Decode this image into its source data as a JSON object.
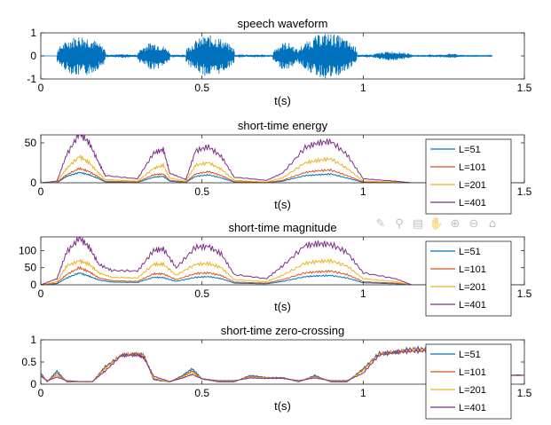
{
  "colors": [
    "#0072BD",
    "#D95319",
    "#EDB120",
    "#7E2F8E"
  ],
  "toolbar": [
    {
      "name": "brush-icon",
      "glyph": "✎"
    },
    {
      "name": "datatip-icon",
      "glyph": "⚲"
    },
    {
      "name": "legend-icon",
      "glyph": "▤"
    },
    {
      "name": "pan-icon",
      "glyph": "✋"
    },
    {
      "name": "zoom-in-icon",
      "glyph": "⊕"
    },
    {
      "name": "zoom-out-icon",
      "glyph": "⊖"
    },
    {
      "name": "home-icon",
      "glyph": "⌂"
    }
  ],
  "chart_data": [
    {
      "type": "line",
      "title": "speech waveform",
      "xlabel": "t(s)",
      "ylabel": "",
      "xlim": [
        0,
        1.5
      ],
      "ylim": [
        -1,
        1
      ],
      "xticks": [
        0,
        0.5,
        1,
        1.5
      ],
      "yticks": [
        -1,
        0,
        1
      ],
      "kind": "waveform",
      "series": [
        {
          "segments": [
            {
              "t0": 0.05,
              "t1": 0.2,
              "amp": 0.9
            },
            {
              "t0": 0.2,
              "t1": 0.3,
              "amp": 0.08
            },
            {
              "t0": 0.3,
              "t1": 0.4,
              "amp": 0.6
            },
            {
              "t0": 0.4,
              "t1": 0.45,
              "amp": 0.05
            },
            {
              "t0": 0.45,
              "t1": 0.6,
              "amp": 0.9
            },
            {
              "t0": 0.6,
              "t1": 0.7,
              "amp": 0.05
            },
            {
              "t0": 0.72,
              "t1": 0.8,
              "amp": 0.6
            },
            {
              "t0": 0.8,
              "t1": 0.98,
              "amp": 1.0
            },
            {
              "t0": 0.98,
              "t1": 1.03,
              "amp": 0.05
            },
            {
              "t0": 1.03,
              "t1": 1.15,
              "amp": 0.2
            },
            {
              "t0": 1.2,
              "t1": 1.25,
              "amp": 0.05
            },
            {
              "t0": 1.25,
              "t1": 1.3,
              "amp": 0.1
            }
          ]
        }
      ]
    },
    {
      "type": "line",
      "title": "short-time energy",
      "xlabel": "t(s)",
      "ylabel": "",
      "xlim": [
        0,
        1.5
      ],
      "ylim": [
        0,
        60
      ],
      "xticks": [
        0,
        0.5,
        1,
        1.5
      ],
      "yticks": [
        0,
        50
      ],
      "legend": "right",
      "series": [
        {
          "name": "L=51",
          "x": [
            0,
            0.05,
            0.08,
            0.12,
            0.15,
            0.18,
            0.2,
            0.3,
            0.35,
            0.38,
            0.4,
            0.45,
            0.48,
            0.52,
            0.56,
            0.6,
            0.7,
            0.75,
            0.82,
            0.86,
            0.9,
            0.95,
            1.0,
            1.1,
            1.15,
            1.3,
            1.5
          ],
          "y": [
            0,
            0,
            8,
            13,
            10,
            5,
            1,
            0.5,
            7,
            8,
            2,
            0.5,
            8,
            10,
            6,
            1,
            0.3,
            2,
            9,
            10,
            11,
            6,
            0.5,
            0.3,
            0,
            0,
            0
          ]
        },
        {
          "name": "L=101",
          "x": [
            0,
            0.05,
            0.08,
            0.12,
            0.15,
            0.18,
            0.2,
            0.3,
            0.35,
            0.38,
            0.4,
            0.45,
            0.48,
            0.52,
            0.56,
            0.6,
            0.7,
            0.75,
            0.82,
            0.86,
            0.9,
            0.95,
            1.0,
            1.1,
            1.15,
            1.3,
            1.5
          ],
          "y": [
            0,
            0.5,
            10,
            18,
            14,
            7,
            2,
            1,
            10,
            11,
            3,
            1,
            11,
            14,
            9,
            1.5,
            0.5,
            3,
            13,
            15,
            16,
            9,
            1,
            0.5,
            0,
            0,
            0
          ]
        },
        {
          "name": "L=201",
          "x": [
            0,
            0.05,
            0.08,
            0.12,
            0.15,
            0.18,
            0.2,
            0.3,
            0.35,
            0.38,
            0.4,
            0.45,
            0.48,
            0.52,
            0.56,
            0.6,
            0.7,
            0.75,
            0.82,
            0.86,
            0.9,
            0.95,
            1.0,
            1.1,
            1.15,
            1.3,
            1.5
          ],
          "y": [
            0,
            1,
            18,
            33,
            25,
            12,
            4,
            2,
            18,
            22,
            6,
            2,
            22,
            25,
            17,
            3,
            1,
            6,
            25,
            28,
            30,
            18,
            2,
            1,
            0,
            0,
            0
          ]
        },
        {
          "name": "L=401",
          "x": [
            0,
            0.05,
            0.08,
            0.12,
            0.15,
            0.18,
            0.2,
            0.3,
            0.35,
            0.38,
            0.4,
            0.45,
            0.48,
            0.52,
            0.56,
            0.6,
            0.7,
            0.75,
            0.82,
            0.86,
            0.9,
            0.95,
            1.0,
            1.1,
            1.15,
            1.3,
            1.5
          ],
          "y": [
            0,
            2,
            35,
            62,
            50,
            25,
            9,
            5,
            37,
            42,
            12,
            4,
            40,
            45,
            33,
            7,
            3,
            12,
            44,
            50,
            52,
            35,
            5,
            2,
            0,
            0,
            0
          ]
        }
      ]
    },
    {
      "type": "line",
      "title": "short-time magnitude",
      "xlabel": "t(s)",
      "ylabel": "",
      "xlim": [
        0,
        1.5
      ],
      "ylim": [
        0,
        140
      ],
      "xticks": [
        0,
        0.5,
        1,
        1.5
      ],
      "yticks": [
        0,
        50,
        100
      ],
      "legend": "right",
      "series": [
        {
          "name": "L=51",
          "x": [
            0,
            0.05,
            0.08,
            0.12,
            0.15,
            0.18,
            0.22,
            0.3,
            0.35,
            0.38,
            0.42,
            0.48,
            0.52,
            0.56,
            0.6,
            0.7,
            0.75,
            0.82,
            0.86,
            0.9,
            0.95,
            1.0,
            1.1,
            1.15,
            1.3,
            1.5
          ],
          "y": [
            0,
            3,
            20,
            35,
            25,
            14,
            8,
            7,
            22,
            21,
            10,
            22,
            24,
            18,
            5,
            3,
            10,
            24,
            26,
            27,
            20,
            6,
            3,
            0,
            0,
            0
          ]
        },
        {
          "name": "L=101",
          "x": [
            0,
            0.05,
            0.08,
            0.12,
            0.15,
            0.18,
            0.22,
            0.3,
            0.35,
            0.38,
            0.42,
            0.48,
            0.52,
            0.56,
            0.6,
            0.7,
            0.75,
            0.82,
            0.86,
            0.9,
            0.95,
            1.0,
            1.1,
            1.15,
            1.3,
            1.5
          ],
          "y": [
            0,
            5,
            30,
            50,
            38,
            20,
            12,
            10,
            32,
            32,
            15,
            33,
            35,
            27,
            8,
            5,
            15,
            35,
            38,
            40,
            30,
            9,
            5,
            0,
            0,
            0
          ]
        },
        {
          "name": "L=201",
          "x": [
            0,
            0.05,
            0.08,
            0.12,
            0.15,
            0.18,
            0.22,
            0.3,
            0.35,
            0.38,
            0.42,
            0.48,
            0.52,
            0.56,
            0.6,
            0.7,
            0.75,
            0.82,
            0.86,
            0.9,
            0.95,
            1.0,
            1.1,
            1.15,
            1.3,
            1.5
          ],
          "y": [
            0,
            9,
            55,
            70,
            60,
            35,
            22,
            20,
            60,
            60,
            28,
            60,
            62,
            50,
            15,
            9,
            28,
            63,
            68,
            70,
            55,
            18,
            9,
            0,
            0,
            0
          ]
        },
        {
          "name": "L=401",
          "x": [
            0,
            0.05,
            0.08,
            0.12,
            0.15,
            0.18,
            0.22,
            0.3,
            0.35,
            0.38,
            0.42,
            0.48,
            0.52,
            0.56,
            0.6,
            0.7,
            0.75,
            0.82,
            0.86,
            0.9,
            0.95,
            1.0,
            1.1,
            1.15,
            1.3,
            1.5
          ],
          "y": [
            0,
            18,
            95,
            137,
            110,
            60,
            42,
            40,
            100,
            105,
            50,
            110,
            112,
            90,
            30,
            18,
            55,
            115,
            120,
            118,
            95,
            35,
            18,
            0,
            0,
            0
          ]
        }
      ]
    },
    {
      "type": "line",
      "title": "short-time zero-crossing",
      "xlabel": "t(s)",
      "ylabel": "",
      "xlim": [
        0,
        1.5
      ],
      "ylim": [
        0,
        1
      ],
      "xticks": [
        0,
        0.5,
        1,
        1.5
      ],
      "yticks": [
        0,
        0.5,
        1
      ],
      "legend": "right",
      "series": [
        {
          "name": "L=51",
          "x": [
            0,
            0.02,
            0.05,
            0.08,
            0.12,
            0.16,
            0.2,
            0.25,
            0.3,
            0.32,
            0.35,
            0.4,
            0.44,
            0.47,
            0.5,
            0.55,
            0.6,
            0.65,
            0.7,
            0.75,
            0.8,
            0.85,
            0.9,
            0.95,
            1.0,
            1.05,
            1.1,
            1.15,
            1.2,
            1.25,
            1.3,
            1.5
          ],
          "y": [
            0.25,
            0.05,
            0.3,
            0.05,
            0.05,
            0.05,
            0.4,
            0.65,
            0.68,
            0.65,
            0.1,
            0.05,
            0.2,
            0.35,
            0.12,
            0.05,
            0.05,
            0.2,
            0.15,
            0.15,
            0.05,
            0.2,
            0.05,
            0.05,
            0.35,
            0.7,
            0.72,
            0.8,
            0.8,
            0.3,
            0.2,
            0.2
          ]
        },
        {
          "name": "L=101",
          "x": [
            0,
            0.02,
            0.05,
            0.08,
            0.12,
            0.16,
            0.2,
            0.25,
            0.3,
            0.32,
            0.35,
            0.4,
            0.44,
            0.47,
            0.5,
            0.55,
            0.6,
            0.65,
            0.7,
            0.75,
            0.8,
            0.85,
            0.9,
            0.95,
            1.0,
            1.05,
            1.1,
            1.15,
            1.2,
            1.25,
            1.3,
            1.5
          ],
          "y": [
            0.22,
            0.06,
            0.25,
            0.06,
            0.05,
            0.05,
            0.38,
            0.66,
            0.68,
            0.64,
            0.12,
            0.05,
            0.18,
            0.3,
            0.12,
            0.06,
            0.06,
            0.18,
            0.14,
            0.14,
            0.06,
            0.18,
            0.06,
            0.06,
            0.33,
            0.69,
            0.72,
            0.78,
            0.78,
            0.32,
            0.2,
            0.2
          ]
        },
        {
          "name": "L=201",
          "x": [
            0,
            0.02,
            0.05,
            0.08,
            0.12,
            0.16,
            0.2,
            0.25,
            0.3,
            0.32,
            0.35,
            0.4,
            0.44,
            0.47,
            0.5,
            0.55,
            0.6,
            0.65,
            0.7,
            0.75,
            0.8,
            0.85,
            0.9,
            0.95,
            1.0,
            1.05,
            1.1,
            1.15,
            1.2,
            1.25,
            1.3,
            1.5
          ],
          "y": [
            0.2,
            0.07,
            0.2,
            0.07,
            0.05,
            0.05,
            0.35,
            0.66,
            0.67,
            0.63,
            0.14,
            0.05,
            0.16,
            0.27,
            0.12,
            0.07,
            0.07,
            0.16,
            0.14,
            0.13,
            0.07,
            0.16,
            0.07,
            0.07,
            0.3,
            0.68,
            0.72,
            0.76,
            0.77,
            0.35,
            0.2,
            0.2
          ]
        },
        {
          "name": "L=401",
          "x": [
            0,
            0.02,
            0.05,
            0.08,
            0.12,
            0.16,
            0.2,
            0.25,
            0.3,
            0.32,
            0.35,
            0.4,
            0.44,
            0.47,
            0.5,
            0.55,
            0.6,
            0.65,
            0.7,
            0.75,
            0.8,
            0.85,
            0.9,
            0.95,
            1.0,
            1.05,
            1.1,
            1.15,
            1.2,
            1.25,
            1.3,
            1.5
          ],
          "y": [
            0.18,
            0.08,
            0.16,
            0.08,
            0.06,
            0.06,
            0.3,
            0.65,
            0.66,
            0.6,
            0.18,
            0.06,
            0.14,
            0.22,
            0.12,
            0.08,
            0.08,
            0.14,
            0.13,
            0.13,
            0.08,
            0.14,
            0.08,
            0.08,
            0.25,
            0.66,
            0.72,
            0.74,
            0.75,
            0.4,
            0.22,
            0.2
          ]
        }
      ]
    }
  ]
}
